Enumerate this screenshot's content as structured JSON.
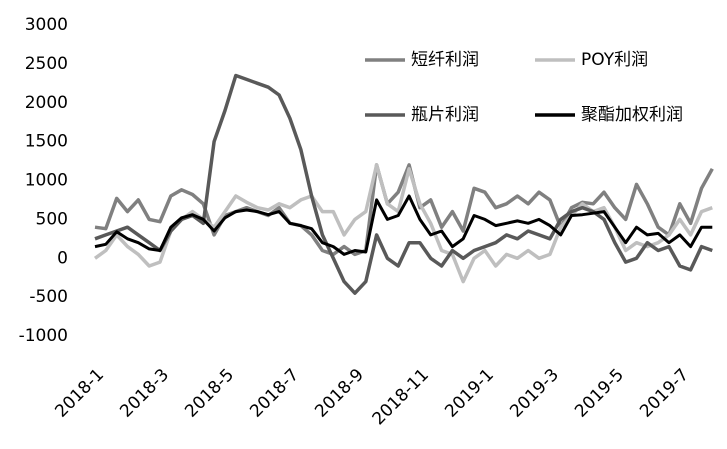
{
  "chart_data": {
    "type": "line",
    "categories": [
      "2018-1",
      null,
      null,
      null,
      null,
      null,
      "2018-3",
      null,
      null,
      null,
      null,
      null,
      "2018-5",
      null,
      null,
      null,
      null,
      null,
      "2018-7",
      null,
      null,
      null,
      null,
      null,
      "2018-9",
      null,
      null,
      null,
      null,
      null,
      "2018-11",
      null,
      null,
      null,
      null,
      null,
      "2019-1",
      null,
      null,
      null,
      null,
      null,
      "2019-3",
      null,
      null,
      null,
      null,
      null,
      "2019-5",
      null,
      null,
      null,
      null,
      null,
      "2019-7",
      null,
      null,
      null
    ],
    "series": [
      {
        "name": "短纤利润",
        "color": "#808080",
        "values": [
          400,
          380,
          770,
          600,
          750,
          500,
          470,
          800,
          880,
          820,
          700,
          300,
          550,
          600,
          650,
          600,
          550,
          650,
          450,
          420,
          300,
          100,
          50,
          150,
          50,
          100,
          1200,
          700,
          850,
          1200,
          650,
          750,
          400,
          600,
          350,
          900,
          850,
          650,
          700,
          800,
          700,
          850,
          750,
          400,
          650,
          720,
          700,
          850,
          650,
          500,
          950,
          700,
          400,
          300,
          700,
          450,
          900,
          1150
        ]
      },
      {
        "name": "POY利润",
        "color": "#bfbfbf",
        "values": [
          0,
          100,
          300,
          150,
          50,
          -100,
          -50,
          350,
          500,
          600,
          500,
          400,
          600,
          800,
          720,
          650,
          620,
          700,
          650,
          750,
          800,
          600,
          600,
          300,
          500,
          600,
          1200,
          700,
          600,
          1150,
          700,
          450,
          100,
          50,
          -300,
          0,
          100,
          -100,
          50,
          0,
          100,
          0,
          50,
          400,
          550,
          700,
          600,
          650,
          400,
          100,
          200,
          150,
          200,
          300,
          500,
          300,
          600,
          650
        ]
      },
      {
        "name": "瓶片利润",
        "color": "#595959",
        "values": [
          250,
          300,
          350,
          400,
          300,
          200,
          100,
          350,
          500,
          550,
          450,
          1500,
          1900,
          2350,
          2300,
          2250,
          2200,
          2100,
          1800,
          1400,
          800,
          300,
          0,
          -300,
          -450,
          -300,
          300,
          0,
          -100,
          200,
          200,
          0,
          -100,
          100,
          0,
          100,
          150,
          200,
          300,
          250,
          350,
          300,
          250,
          500,
          600,
          650,
          600,
          500,
          200,
          -50,
          0,
          200,
          100,
          150,
          -100,
          -150,
          150,
          100
        ]
      },
      {
        "name": "聚酯加权利润",
        "color": "#000000",
        "values": [
          150,
          180,
          340,
          250,
          200,
          120,
          100,
          400,
          520,
          560,
          500,
          350,
          520,
          600,
          620,
          600,
          560,
          600,
          450,
          420,
          380,
          200,
          150,
          50,
          100,
          80,
          750,
          500,
          550,
          800,
          500,
          300,
          350,
          150,
          250,
          550,
          500,
          420,
          450,
          480,
          450,
          500,
          420,
          300,
          550,
          560,
          580,
          600,
          400,
          200,
          400,
          300,
          320,
          200,
          300,
          150,
          400,
          400
        ]
      }
    ],
    "ylim": [
      -1000,
      3000
    ],
    "yticks": [
      -1000,
      -500,
      0,
      500,
      1000,
      1500,
      2000,
      2500,
      3000
    ]
  }
}
